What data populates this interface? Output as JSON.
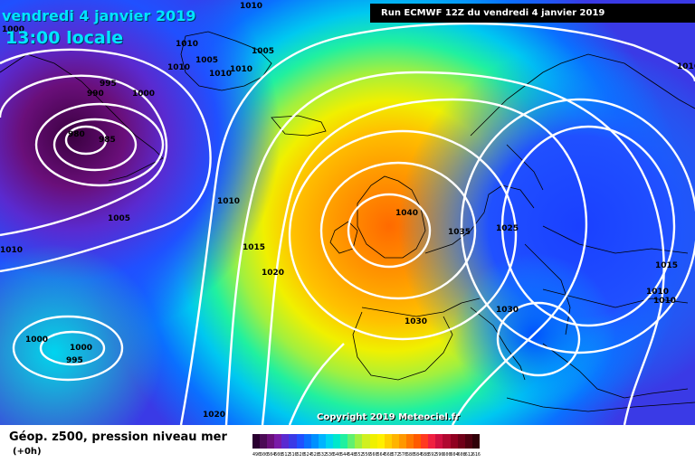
{
  "header": {
    "date_title": "vendredi 4 janvier 2019",
    "local_time": "13:00 locale",
    "run_info": "Run ECMWF 12Z du vendredi 4 janvier 2019"
  },
  "copyright": "Copyright 2019 Meteociel.fr",
  "legend": {
    "title": "Géop. z500, pression niveau mer",
    "subtitle": "(+0h)",
    "scale_values": [
      "496",
      "500",
      "504",
      "508",
      "512",
      "516",
      "520",
      "524",
      "528",
      "532",
      "536",
      "540",
      "544",
      "548",
      "552",
      "556",
      "560",
      "564",
      "568",
      "572",
      "576",
      "580",
      "584",
      "588",
      "592",
      "596",
      "600",
      "604",
      "608",
      "612",
      "616"
    ],
    "scale_colors": [
      "#2a0030",
      "#4b0a55",
      "#6a0f7a",
      "#7a1aa8",
      "#5a2ad0",
      "#3a3ae6",
      "#2050ff",
      "#0a70ff",
      "#0090ff",
      "#00b4ff",
      "#00d4f0",
      "#00e8cc",
      "#20f0a0",
      "#60f070",
      "#a0f040",
      "#d0f020",
      "#f0f000",
      "#fff000",
      "#ffd000",
      "#ffb400",
      "#ff9800",
      "#ff7800",
      "#ff5a00",
      "#ff3a20",
      "#f02040",
      "#d01040",
      "#b00830",
      "#900020",
      "#700018",
      "#500010",
      "#300008"
    ]
  },
  "isobar_labels": [
    {
      "text": "1000",
      "id": "1000-nw"
    },
    {
      "text": "1010",
      "id": "1010-top"
    },
    {
      "text": "1010",
      "id": "1010-iceland-w"
    },
    {
      "text": "1005",
      "id": "1005-iceland"
    },
    {
      "text": "1005",
      "id": "1005-iceland-e"
    },
    {
      "text": "1010",
      "id": "1010-iceland-s"
    },
    {
      "text": "1010",
      "id": "1010-iceland-se"
    },
    {
      "text": "1010",
      "id": "1010-iceland-w2"
    },
    {
      "text": "995",
      "id": "995-low"
    },
    {
      "text": "990",
      "id": "990-low"
    },
    {
      "text": "1000",
      "id": "1000-low"
    },
    {
      "text": "980",
      "id": "980-low"
    },
    {
      "text": "985",
      "id": "985-low"
    },
    {
      "text": "1010",
      "id": "1010-mid"
    },
    {
      "text": "1005",
      "id": "1005-mid"
    },
    {
      "text": "1010",
      "id": "1010-west"
    },
    {
      "text": "1015",
      "id": "1015-mid"
    },
    {
      "text": "1020",
      "id": "1020-mid"
    },
    {
      "text": "1040",
      "id": "1040-high"
    },
    {
      "text": "1035",
      "id": "1035-north-sea"
    },
    {
      "text": "1025",
      "id": "1025-europe"
    },
    {
      "text": "1030",
      "id": "1030-biscay"
    },
    {
      "text": "1030",
      "id": "1030-alps"
    },
    {
      "text": "1015",
      "id": "1015-east"
    },
    {
      "text": "1010",
      "id": "1010-east-a"
    },
    {
      "text": "1010",
      "id": "1010-east-b"
    },
    {
      "text": "1000",
      "id": "1000-sw-a"
    },
    {
      "text": "1000",
      "id": "1000-sw-b"
    },
    {
      "text": "995",
      "id": "995-sw"
    },
    {
      "text": "1020",
      "id": "1020-south"
    },
    {
      "text": "1016",
      "id": "1016-east-edge"
    }
  ]
}
